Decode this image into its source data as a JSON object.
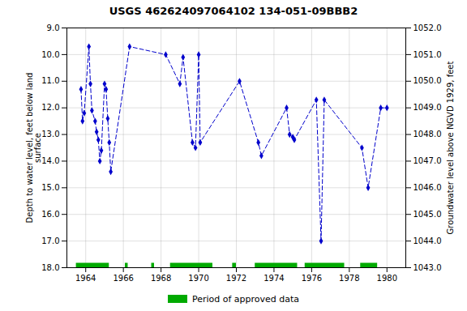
{
  "chart_data": {
    "type": "line",
    "title": "USGS 462624097064102 134-051-09BBB2",
    "ylabel": "Depth to water level, feet below land\nsurface",
    "y2label": "Groundwater level above NGVD 1929, feet",
    "xlim": [
      1963.0,
      1981.0
    ],
    "ylim": [
      18.0,
      9.0
    ],
    "y2lim": [
      1043.0,
      1052.0
    ],
    "xticks": [
      1964,
      1966,
      1968,
      1970,
      1972,
      1974,
      1976,
      1978,
      1980
    ],
    "yticks": [
      {
        "value": 9.0,
        "label": "9.0"
      },
      {
        "value": 10.0,
        "label": "10.0"
      },
      {
        "value": 11.0,
        "label": "11.0"
      },
      {
        "value": 12.0,
        "label": "12.0"
      },
      {
        "value": 13.0,
        "label": "13.0"
      },
      {
        "value": 14.0,
        "label": "14.0"
      },
      {
        "value": 15.0,
        "label": "15.0"
      },
      {
        "value": 16.0,
        "label": "16.0"
      },
      {
        "value": 17.0,
        "label": "17.0"
      },
      {
        "value": 18.0,
        "label": "18.0"
      }
    ],
    "y2ticks": [
      {
        "value": 1043.0,
        "label": "1043.0"
      },
      {
        "value": 1044.0,
        "label": "1044.0"
      },
      {
        "value": 1045.0,
        "label": "1045.0"
      },
      {
        "value": 1046.0,
        "label": "1046.0"
      },
      {
        "value": 1047.0,
        "label": "1047.0"
      },
      {
        "value": 1048.0,
        "label": "1048.0"
      },
      {
        "value": 1049.0,
        "label": "1049.0"
      },
      {
        "value": 1050.0,
        "label": "1050.0"
      },
      {
        "value": 1051.0,
        "label": "1051.0"
      },
      {
        "value": 1052.0,
        "label": "1052.0"
      }
    ],
    "grid": true,
    "legend": "bottom",
    "x": [
      1963.75,
      1963.83,
      1963.92,
      1964.17,
      1964.25,
      1964.33,
      1964.5,
      1964.58,
      1964.67,
      1964.75,
      1964.83,
      1965.0,
      1965.08,
      1965.17,
      1965.25,
      1965.33,
      1966.33,
      1968.25,
      1969.0,
      1969.17,
      1969.67,
      1969.83,
      1970.0,
      1970.08,
      1972.17,
      1973.17,
      1973.33,
      1974.67,
      1974.83,
      1975.0,
      1975.08,
      1976.25,
      1976.5,
      1976.67,
      1978.67,
      1979.0,
      1979.67,
      1980.0
    ],
    "series": [
      {
        "color": "#0000CC",
        "marker": "diamond",
        "line_style": "dashed",
        "values": [
          11.3,
          12.5,
          12.2,
          9.7,
          11.1,
          12.1,
          12.5,
          12.9,
          13.2,
          14.0,
          13.6,
          11.1,
          11.3,
          12.4,
          13.3,
          14.4,
          9.7,
          10.0,
          11.1,
          10.1,
          13.3,
          13.5,
          10.0,
          13.3,
          11.0,
          13.3,
          13.8,
          12.0,
          13.0,
          13.1,
          13.2,
          11.7,
          17.0,
          11.7,
          13.5,
          15.0,
          12.0,
          12.0
        ]
      }
    ],
    "approved_periods": {
      "name": "Period of approved data",
      "color": "#00AA00",
      "ranges": [
        [
          1963.5,
          1965.25
        ],
        [
          1966.1,
          1966.25
        ],
        [
          1967.5,
          1967.65
        ],
        [
          1968.5,
          1970.75
        ],
        [
          1971.8,
          1972.0
        ],
        [
          1973.0,
          1975.25
        ],
        [
          1975.65,
          1977.75
        ],
        [
          1978.6,
          1979.5
        ]
      ]
    }
  }
}
